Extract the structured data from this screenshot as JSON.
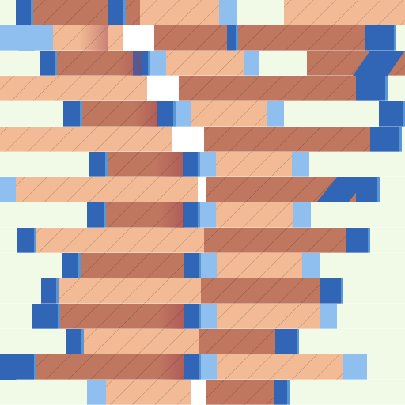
{
  "colors": {
    "background": "#f0fae6",
    "peach": "#f2bb96",
    "terracotta": "#c07760",
    "stripe": "#7a4a3c",
    "blue_dark": "#3166b6",
    "blue_light": "#8ebfee",
    "blue_mid": "#5a96d2",
    "white": "#ffffff"
  }
}
